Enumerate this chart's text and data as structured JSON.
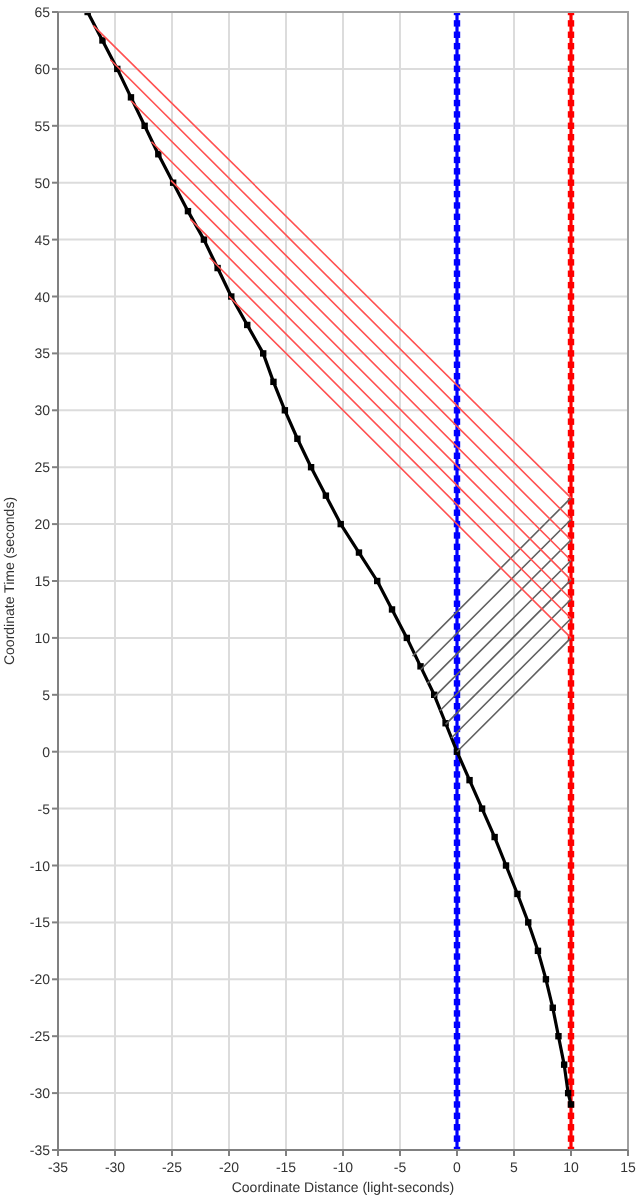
{
  "chart_data": {
    "type": "line",
    "xlabel": "Coordinate Distance (light-seconds)",
    "ylabel": "Coordinate Time (seconds)",
    "xlim": [
      -35,
      15
    ],
    "xticks": [
      -35,
      -30,
      -25,
      -20,
      -15,
      -10,
      -5,
      0,
      5,
      10,
      15
    ],
    "ylim": [
      -35,
      65
    ],
    "yticks": [
      -35,
      -30,
      -25,
      -20,
      -15,
      -10,
      -5,
      0,
      5,
      10,
      15,
      20,
      25,
      30,
      35,
      40,
      45,
      50,
      55,
      60,
      65
    ],
    "grid": true,
    "marker": "square",
    "series": [
      {
        "color": "#0000ff",
        "x": [
          0,
          0,
          0,
          0,
          0,
          0,
          0,
          0,
          0,
          0,
          0,
          0,
          0,
          0,
          0,
          0,
          0,
          0,
          0,
          0,
          0,
          0,
          0,
          0,
          0,
          0,
          0,
          0,
          0,
          0,
          0,
          0,
          0,
          0,
          0,
          0,
          0,
          0,
          0,
          0,
          0,
          0,
          0,
          0,
          0,
          0,
          0,
          0,
          0,
          0,
          0,
          0,
          0,
          0,
          0,
          0,
          0,
          0,
          0,
          0,
          0,
          0,
          0,
          0,
          0,
          0,
          0,
          0,
          0,
          0,
          0,
          0,
          0,
          0,
          0,
          0,
          0,
          0,
          0,
          0,
          0,
          0,
          0,
          0,
          0,
          0,
          0,
          0,
          0,
          0,
          0,
          0,
          0,
          0,
          0,
          0,
          0,
          0,
          0,
          0,
          0
        ],
        "values": [
          -35,
          -34,
          -33,
          -32,
          -31,
          -30,
          -29,
          -28,
          -27,
          -26,
          -25,
          -24,
          -23,
          -22,
          -21,
          -20,
          -19,
          -18,
          -17,
          -16,
          -15,
          -14,
          -13,
          -12,
          -11,
          -10,
          -9,
          -8,
          -7,
          -6,
          -5,
          -4,
          -3,
          -2,
          -1,
          0,
          1,
          2,
          3,
          4,
          5,
          6,
          7,
          8,
          9,
          10,
          11,
          12,
          13,
          14,
          15,
          16,
          17,
          18,
          19,
          20,
          21,
          22,
          23,
          24,
          25,
          26,
          27,
          28,
          29,
          30,
          31,
          32,
          33,
          34,
          35,
          36,
          37,
          38,
          39,
          40,
          41,
          42,
          43,
          44,
          45,
          46,
          47,
          48,
          49,
          50,
          51,
          52,
          53,
          54,
          55,
          56,
          57,
          58,
          59,
          60,
          61,
          62,
          63,
          64,
          65
        ]
      },
      {
        "color": "#ff0000",
        "x": [
          10,
          10,
          10,
          10,
          10,
          10,
          10,
          10,
          10,
          10,
          10,
          10,
          10,
          10,
          10,
          10,
          10,
          10,
          10,
          10,
          10,
          10,
          10,
          10,
          10,
          10,
          10,
          10,
          10,
          10,
          10,
          10,
          10,
          10,
          10,
          10,
          10,
          10,
          10,
          10,
          10,
          10,
          10,
          10,
          10,
          10,
          10,
          10,
          10,
          10,
          10,
          10,
          10,
          10,
          10,
          10,
          10,
          10,
          10,
          10,
          10,
          10,
          10,
          10,
          10,
          10,
          10,
          10,
          10,
          10,
          10,
          10,
          10,
          10,
          10,
          10,
          10,
          10,
          10,
          10,
          10,
          10,
          10,
          10,
          10,
          10,
          10,
          10,
          10,
          10,
          10,
          10,
          10,
          10,
          10,
          10,
          10,
          10,
          10,
          10,
          10
        ],
        "values": [
          -35,
          -34,
          -33,
          -32,
          -31,
          -30,
          -29,
          -28,
          -27,
          -26,
          -25,
          -24,
          -23,
          -22,
          -21,
          -20,
          -19,
          -18,
          -17,
          -16,
          -15,
          -14,
          -13,
          -12,
          -11,
          -10,
          -9,
          -8,
          -7,
          -6,
          -5,
          -4,
          -3,
          -2,
          -1,
          0,
          1,
          2,
          3,
          4,
          5,
          6,
          7,
          8,
          9,
          10,
          11,
          12,
          13,
          14,
          15,
          16,
          17,
          18,
          19,
          20,
          21,
          22,
          23,
          24,
          25,
          26,
          27,
          28,
          29,
          30,
          31,
          32,
          33,
          34,
          35,
          36,
          37,
          38,
          39,
          40,
          41,
          42,
          43,
          44,
          45,
          46,
          47,
          48,
          49,
          50,
          51,
          52,
          53,
          54,
          55,
          56,
          57,
          58,
          59,
          60,
          61,
          62,
          63,
          64,
          65
        ]
      },
      {
        "color": "#000000",
        "x": [
          10,
          9.75,
          9.4,
          8.9,
          8.4,
          7.8,
          7.1,
          6.25,
          5.3,
          4.3,
          3.3,
          2.2,
          1.1,
          0,
          -1,
          -2,
          -3.2,
          -4.4,
          -5.7,
          -7,
          -8.6,
          -10.2,
          -11.5,
          -12.8,
          -14,
          -15.1,
          -16.1,
          -17,
          -18.4,
          -19.8,
          -21,
          -22.2,
          -23.6,
          -24.9,
          -26.2,
          -27.4,
          -28.6,
          -29.8,
          -31.1,
          -32.4
        ],
        "values": [
          -31,
          -30,
          -27.5,
          -25,
          -22.5,
          -20,
          -17.5,
          -15,
          -12.5,
          -10,
          -7.5,
          -5,
          -2.5,
          0,
          2.5,
          5,
          7.5,
          10,
          12.5,
          15,
          17.5,
          20,
          22.5,
          25,
          27.5,
          30,
          32.5,
          35,
          37.5,
          40,
          42.5,
          45,
          47.5,
          50,
          52.5,
          55,
          57.5,
          60,
          62.5,
          65
        ]
      },
      {
        "color": "#606060",
        "marker": "none",
        "x": [
          0,
          10
        ],
        "values": [
          0,
          10
        ]
      },
      {
        "color": "#606060",
        "marker": "none",
        "x": [
          -0.5,
          10
        ],
        "values": [
          1.2,
          11.7
        ]
      },
      {
        "color": "#606060",
        "marker": "none",
        "x": [
          -1,
          10
        ],
        "values": [
          2.4,
          13.4
        ]
      },
      {
        "color": "#606060",
        "marker": "none",
        "x": [
          -1.5,
          10
        ],
        "values": [
          3.6,
          15.1
        ]
      },
      {
        "color": "#606060",
        "marker": "none",
        "x": [
          -2,
          10
        ],
        "values": [
          4.8,
          16.8
        ]
      },
      {
        "color": "#606060",
        "marker": "none",
        "x": [
          -2.6,
          10
        ],
        "values": [
          6,
          18.6
        ]
      },
      {
        "color": "#606060",
        "marker": "none",
        "x": [
          -3.2,
          10
        ],
        "values": [
          7.2,
          20.4
        ]
      },
      {
        "color": "#606060",
        "marker": "none",
        "x": [
          -3.9,
          10
        ],
        "values": [
          8.4,
          22.3
        ]
      },
      {
        "color": "#ff5050",
        "marker": "none",
        "x": [
          10,
          -20
        ],
        "values": [
          10,
          40
        ]
      },
      {
        "color": "#ff5050",
        "marker": "none",
        "x": [
          10,
          -21.7
        ],
        "values": [
          11.7,
          43.4
        ]
      },
      {
        "color": "#ff5050",
        "marker": "none",
        "x": [
          10,
          -23.4
        ],
        "values": [
          13.4,
          46.8
        ]
      },
      {
        "color": "#ff5050",
        "marker": "none",
        "x": [
          10,
          -25.1
        ],
        "values": [
          15.1,
          50.2
        ]
      },
      {
        "color": "#ff5050",
        "marker": "none",
        "x": [
          10,
          -26.8
        ],
        "values": [
          16.8,
          53.6
        ]
      },
      {
        "color": "#ff5050",
        "marker": "none",
        "x": [
          10,
          -28.6
        ],
        "values": [
          18.6,
          57.2
        ]
      },
      {
        "color": "#ff5050",
        "marker": "none",
        "x": [
          10,
          -30.4
        ],
        "values": [
          20.4,
          60.8
        ]
      },
      {
        "color": "#ff5050",
        "marker": "none",
        "x": [
          10,
          -31.9
        ],
        "values": [
          22.3,
          63.8
        ]
      }
    ]
  }
}
